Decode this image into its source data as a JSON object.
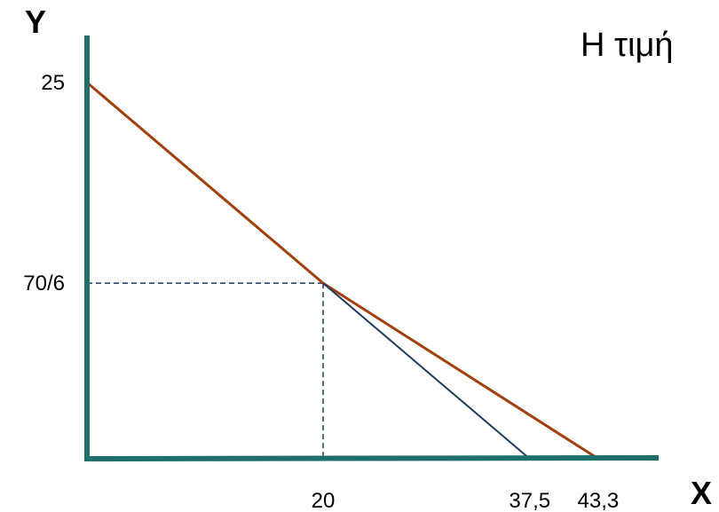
{
  "chart_data": {
    "type": "line",
    "title": "Η τιμή",
    "xlabel": "X",
    "ylabel": "Y",
    "xlim": [
      0,
      45
    ],
    "ylim": [
      0,
      25
    ],
    "grid": false,
    "x_ticks": [
      {
        "value": 20,
        "label": "20"
      },
      {
        "value": 37.5,
        "label": "37,5"
      },
      {
        "value": 43.3,
        "label": "43,3"
      }
    ],
    "y_ticks": [
      {
        "value": 25,
        "label": "25"
      },
      {
        "value": 11.6667,
        "label": "70/6"
      }
    ],
    "series": [
      {
        "color": "#a0400a",
        "points": [
          [
            0,
            25
          ],
          [
            20,
            11.6667
          ],
          [
            43.3,
            0
          ]
        ]
      },
      {
        "color": "#1f3a5f",
        "points": [
          [
            20,
            11.6667
          ],
          [
            37.5,
            0
          ]
        ]
      }
    ],
    "reference_lines": [
      {
        "color": "#1f3a5f",
        "points": [
          [
            0,
            11.6667
          ],
          [
            20,
            11.6667
          ]
        ]
      },
      {
        "color": "#1f3a5f",
        "points": [
          [
            20,
            11.6667
          ],
          [
            20,
            0
          ]
        ]
      }
    ],
    "axis_color": "#1f6f6a"
  }
}
